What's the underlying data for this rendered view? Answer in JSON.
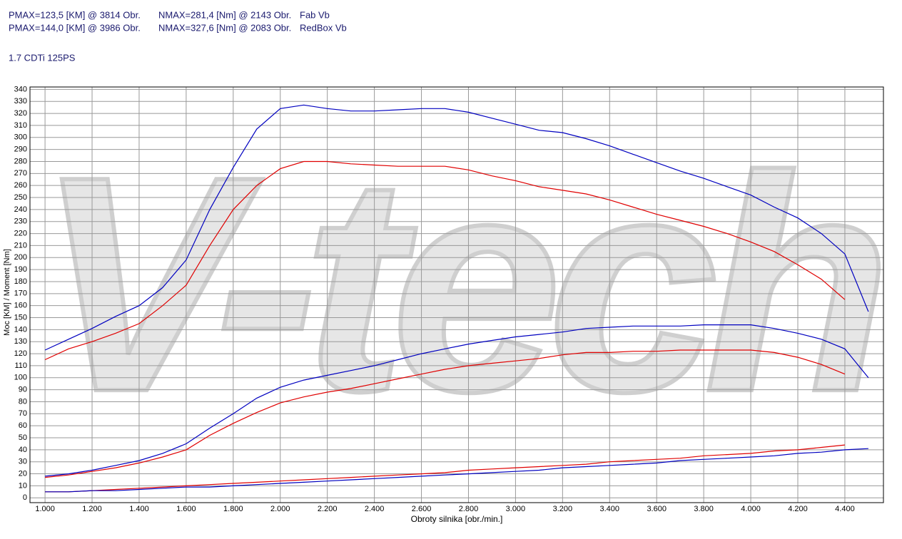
{
  "chart_data": {
    "type": "line",
    "subtitle": "1.7 CDTi 125PS",
    "watermark": "V-tech",
    "x_label": "Obroty silnika [obr./min.]",
    "y_label": "Moc [KM] / Moment [Nm]",
    "x": [
      1000,
      1100,
      1200,
      1300,
      1400,
      1500,
      1600,
      1700,
      1800,
      1900,
      2000,
      2100,
      2200,
      2300,
      2400,
      2500,
      2600,
      2700,
      2800,
      2900,
      3000,
      3100,
      3200,
      3300,
      3400,
      3500,
      3600,
      3700,
      3800,
      3900,
      4000,
      4100,
      4200,
      4300,
      4400,
      4500
    ],
    "xlim": [
      936,
      4564
    ],
    "ylim": [
      -4,
      342
    ],
    "xticks": [
      {
        "value": 1000,
        "label": "1.000"
      },
      {
        "value": 1200,
        "label": "1.200"
      },
      {
        "value": 1400,
        "label": "1.400"
      },
      {
        "value": 1600,
        "label": "1.600"
      },
      {
        "value": 1800,
        "label": "1.800"
      },
      {
        "value": 2000,
        "label": "2.000"
      },
      {
        "value": 2200,
        "label": "2.200"
      },
      {
        "value": 2400,
        "label": "2.400"
      },
      {
        "value": 2600,
        "label": "2.600"
      },
      {
        "value": 2800,
        "label": "2.800"
      },
      {
        "value": 3000,
        "label": "3.000"
      },
      {
        "value": 3200,
        "label": "3.200"
      },
      {
        "value": 3400,
        "label": "3.400"
      },
      {
        "value": 3600,
        "label": "3.600"
      },
      {
        "value": 3800,
        "label": "3.800"
      },
      {
        "value": 4000,
        "label": "4.000"
      },
      {
        "value": 4200,
        "label": "4.200"
      },
      {
        "value": 4400,
        "label": "4.400"
      }
    ],
    "yticks": [
      0,
      10,
      20,
      30,
      40,
      50,
      60,
      70,
      80,
      90,
      100,
      110,
      120,
      130,
      140,
      150,
      160,
      170,
      180,
      190,
      200,
      210,
      220,
      230,
      240,
      250,
      260,
      270,
      280,
      290,
      300,
      310,
      320,
      330,
      340
    ],
    "grid": true,
    "series": [
      {
        "name": "Fab Vb",
        "color": "#e00000",
        "pmax_text": "PMAX=123,5 [KM] @ 3814 Obr.",
        "nmax_text": "NMAX=281,4 [Nm] @ 2143 Obr.",
        "torque": [
          115,
          124,
          130,
          137,
          145,
          160,
          177,
          210,
          240,
          260,
          274,
          280,
          280,
          278,
          277,
          276,
          276,
          276,
          273,
          268,
          264,
          259,
          256,
          253,
          248,
          242,
          236,
          231,
          226,
          220,
          213,
          205,
          194,
          182,
          165,
          null
        ],
        "power": [
          17,
          19,
          22,
          25,
          29,
          34,
          40,
          52,
          62,
          71,
          79,
          84,
          88,
          91,
          95,
          99,
          103,
          107,
          110,
          112,
          114,
          116,
          119,
          121,
          121,
          122,
          122,
          123,
          123,
          123,
          123,
          121,
          117,
          111,
          103,
          null
        ],
        "loss": [
          5,
          5,
          6,
          7,
          8,
          9,
          10,
          11,
          12,
          13,
          14,
          15,
          16,
          17,
          18,
          19,
          20,
          21,
          23,
          24,
          25,
          26,
          27,
          28,
          30,
          31,
          32,
          33,
          35,
          36,
          37,
          39,
          40,
          42,
          44,
          null
        ]
      },
      {
        "name": "RedBox Vb",
        "color": "#0000c0",
        "pmax_text": "PMAX=144,0 [KM] @ 3986 Obr.",
        "nmax_text": "NMAX=327,6 [Nm] @ 2083 Obr.",
        "torque": [
          123,
          132,
          141,
          151,
          160,
          175,
          198,
          240,
          275,
          307,
          324,
          327,
          324,
          322,
          322,
          323,
          324,
          324,
          321,
          316,
          311,
          306,
          304,
          299,
          293,
          286,
          279,
          272,
          266,
          259,
          252,
          242,
          233,
          220,
          203,
          155
        ],
        "power": [
          18,
          20,
          23,
          27,
          31,
          37,
          45,
          58,
          70,
          83,
          92,
          98,
          102,
          106,
          110,
          115,
          120,
          124,
          128,
          131,
          134,
          136,
          138,
          141,
          142,
          143,
          143,
          143,
          144,
          144,
          144,
          141,
          137,
          132,
          124,
          100
        ],
        "loss": [
          5,
          5,
          6,
          6,
          7,
          8,
          9,
          9,
          10,
          11,
          12,
          13,
          14,
          15,
          16,
          17,
          18,
          19,
          20,
          21,
          22,
          23,
          25,
          26,
          27,
          28,
          29,
          31,
          32,
          33,
          34,
          35,
          37,
          38,
          40,
          41
        ]
      }
    ]
  }
}
